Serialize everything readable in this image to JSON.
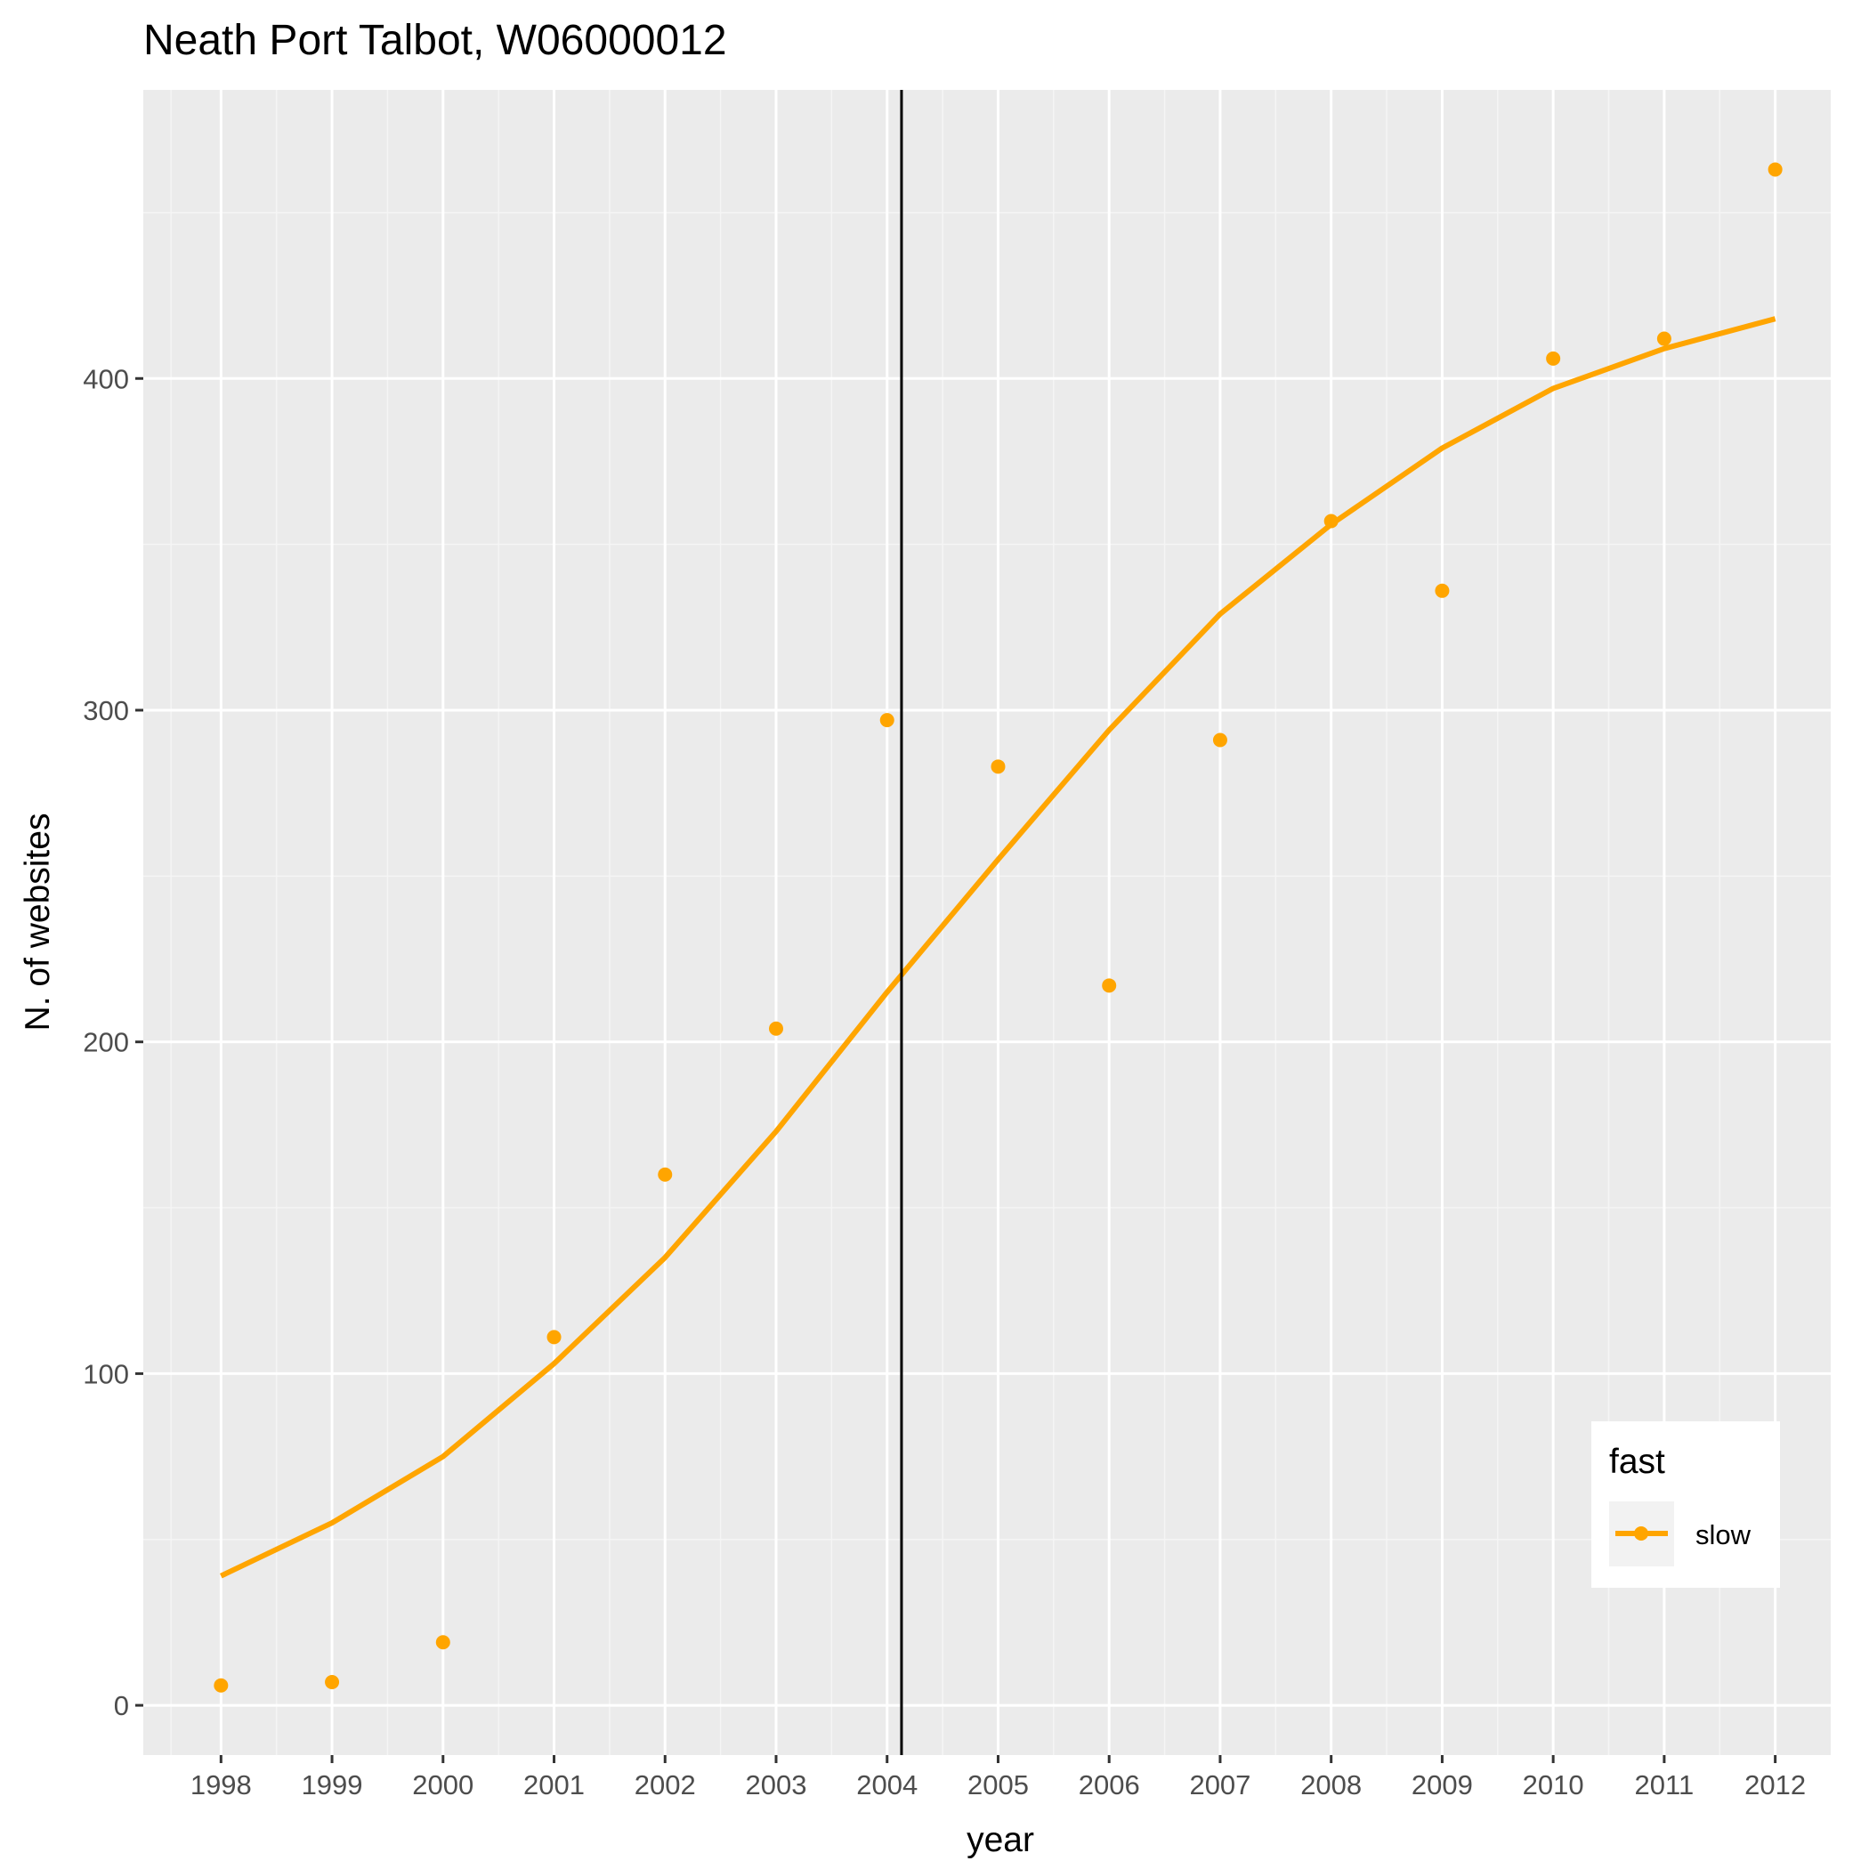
{
  "colors": {
    "panel": "#ebebeb",
    "grid_major": "#ffffff",
    "grid_minor": "#f5f5f5",
    "series": "#ffa500",
    "vline": "#000000",
    "legend_key": "#f2f2f2"
  },
  "chart_data": {
    "type": "scatter",
    "title": "Neath Port Talbot, W06000012",
    "xlabel": "year",
    "ylabel": "N. of websites",
    "xlim": [
      1997.3,
      2012.5
    ],
    "ylim": [
      -15,
      487
    ],
    "x_ticks": [
      1998,
      1999,
      2000,
      2001,
      2002,
      2003,
      2004,
      2005,
      2006,
      2007,
      2008,
      2009,
      2010,
      2011,
      2012
    ],
    "x_tick_labels": [
      "1998",
      "1999",
      "2000",
      "2001",
      "2002",
      "2003",
      "2004",
      "2005",
      "2006",
      "2007",
      "2008",
      "2009",
      "2010",
      "2011",
      "2012"
    ],
    "y_ticks": [
      0,
      100,
      200,
      300,
      400
    ],
    "y_tick_labels": [
      "0",
      "100",
      "200",
      "300",
      "400"
    ],
    "y_minor_ticks": [
      50,
      150,
      250,
      350,
      450
    ],
    "vline_x": 2004.13,
    "series": [
      {
        "name": "slow",
        "points": {
          "x": [
            1998,
            1999,
            2000,
            2001,
            2002,
            2003,
            2004,
            2005,
            2006,
            2007,
            2008,
            2009,
            2010,
            2011,
            2012
          ],
          "y": [
            6,
            7,
            19,
            111,
            160,
            204,
            297,
            283,
            217,
            291,
            357,
            336,
            406,
            412,
            463
          ]
        },
        "fit": {
          "x": [
            1998,
            1999,
            2000,
            2001,
            2002,
            2003,
            2004,
            2005,
            2006,
            2007,
            2008,
            2009,
            2010,
            2011,
            2012
          ],
          "y": [
            39,
            55,
            75,
            103,
            135,
            173,
            215,
            255,
            294,
            329,
            356,
            379,
            397,
            409,
            418
          ]
        }
      }
    ],
    "legend": {
      "title": "fast",
      "entries": [
        "slow"
      ],
      "position": "bottom-right inside"
    }
  }
}
